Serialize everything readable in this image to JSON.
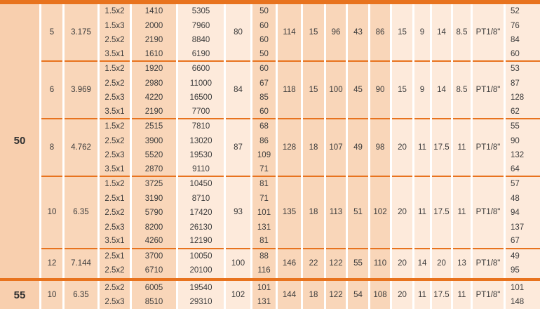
{
  "colors": {
    "accent_orange": "#e8731e",
    "cell_medium_peach": "#f9d6b9",
    "cell_section_peach": "#f8cfae",
    "cell_light_peach": "#fdeadb",
    "text": "#3b3b3b"
  },
  "table": {
    "sections": [
      {
        "label": "50",
        "groups": [
          {
            "c2": "5",
            "c3": "3.175",
            "c7": "80",
            "spans": [
              "114",
              "15",
              "96",
              "43",
              "86",
              "15",
              "9",
              "14",
              "8.5",
              "PT1/8\""
            ],
            "rows": [
              [
                "1.5x2",
                "1410",
                "5305",
                "50",
                "52"
              ],
              [
                "1.5x3",
                "2000",
                "7960",
                "60",
                "76"
              ],
              [
                "2.5x2",
                "2190",
                "8840",
                "60",
                "84"
              ],
              [
                "3.5x1",
                "1610",
                "6190",
                "50",
                "60"
              ]
            ]
          },
          {
            "c2": "6",
            "c3": "3.969",
            "c7": "84",
            "spans": [
              "118",
              "15",
              "100",
              "45",
              "90",
              "15",
              "9",
              "14",
              "8.5",
              "PT1/8\""
            ],
            "rows": [
              [
                "1.5x2",
                "1920",
                "6600",
                "60",
                "53"
              ],
              [
                "2.5x2",
                "2980",
                "11000",
                "67",
                "87"
              ],
              [
                "2.5x3",
                "4220",
                "16500",
                "85",
                "128"
              ],
              [
                "3.5x1",
                "2190",
                "7700",
                "60",
                "62"
              ]
            ]
          },
          {
            "c2": "8",
            "c3": "4.762",
            "c7": "87",
            "spans": [
              "128",
              "18",
              "107",
              "49",
              "98",
              "20",
              "11",
              "17.5",
              "11",
              "PT1/8\""
            ],
            "rows": [
              [
                "1.5x2",
                "2515",
                "7810",
                "68",
                "55"
              ],
              [
                "2.5x2",
                "3900",
                "13020",
                "86",
                "90"
              ],
              [
                "2.5x3",
                "5520",
                "19530",
                "109",
                "132"
              ],
              [
                "3.5x1",
                "2870",
                "9110",
                "71",
                "64"
              ]
            ]
          },
          {
            "c2": "10",
            "c3": "6.35",
            "c7": "93",
            "spans": [
              "135",
              "18",
              "113",
              "51",
              "102",
              "20",
              "11",
              "17.5",
              "11",
              "PT1/8\""
            ],
            "rows": [
              [
                "1.5x2",
                "3725",
                "10450",
                "81",
                "57"
              ],
              [
                "2.5x1",
                "3190",
                "8710",
                "71",
                "48"
              ],
              [
                "2.5x2",
                "5790",
                "17420",
                "101",
                "94"
              ],
              [
                "2.5x3",
                "8200",
                "26130",
                "131",
                "137"
              ],
              [
                "3.5x1",
                "4260",
                "12190",
                "81",
                "67"
              ]
            ]
          },
          {
            "c2": "12",
            "c3": "7.144",
            "c7": "100",
            "spans": [
              "146",
              "22",
              "122",
              "55",
              "110",
              "20",
              "14",
              "20",
              "13",
              "PT1/8\""
            ],
            "rows": [
              [
                "2.5x1",
                "3700",
                "10050",
                "88",
                "49"
              ],
              [
                "2.5x2",
                "6710",
                "20100",
                "116",
                "95"
              ]
            ]
          }
        ]
      },
      {
        "label": "55",
        "groups": [
          {
            "c2": "10",
            "c3": "6.35",
            "c7": "102",
            "spans": [
              "144",
              "18",
              "122",
              "54",
              "108",
              "20",
              "11",
              "17.5",
              "11",
              "PT1/8\""
            ],
            "rows": [
              [
                "2.5x2",
                "6005",
                "19540",
                "101",
                "101"
              ],
              [
                "2.5x3",
                "8510",
                "29310",
                "131",
                "148"
              ]
            ]
          }
        ]
      }
    ]
  }
}
